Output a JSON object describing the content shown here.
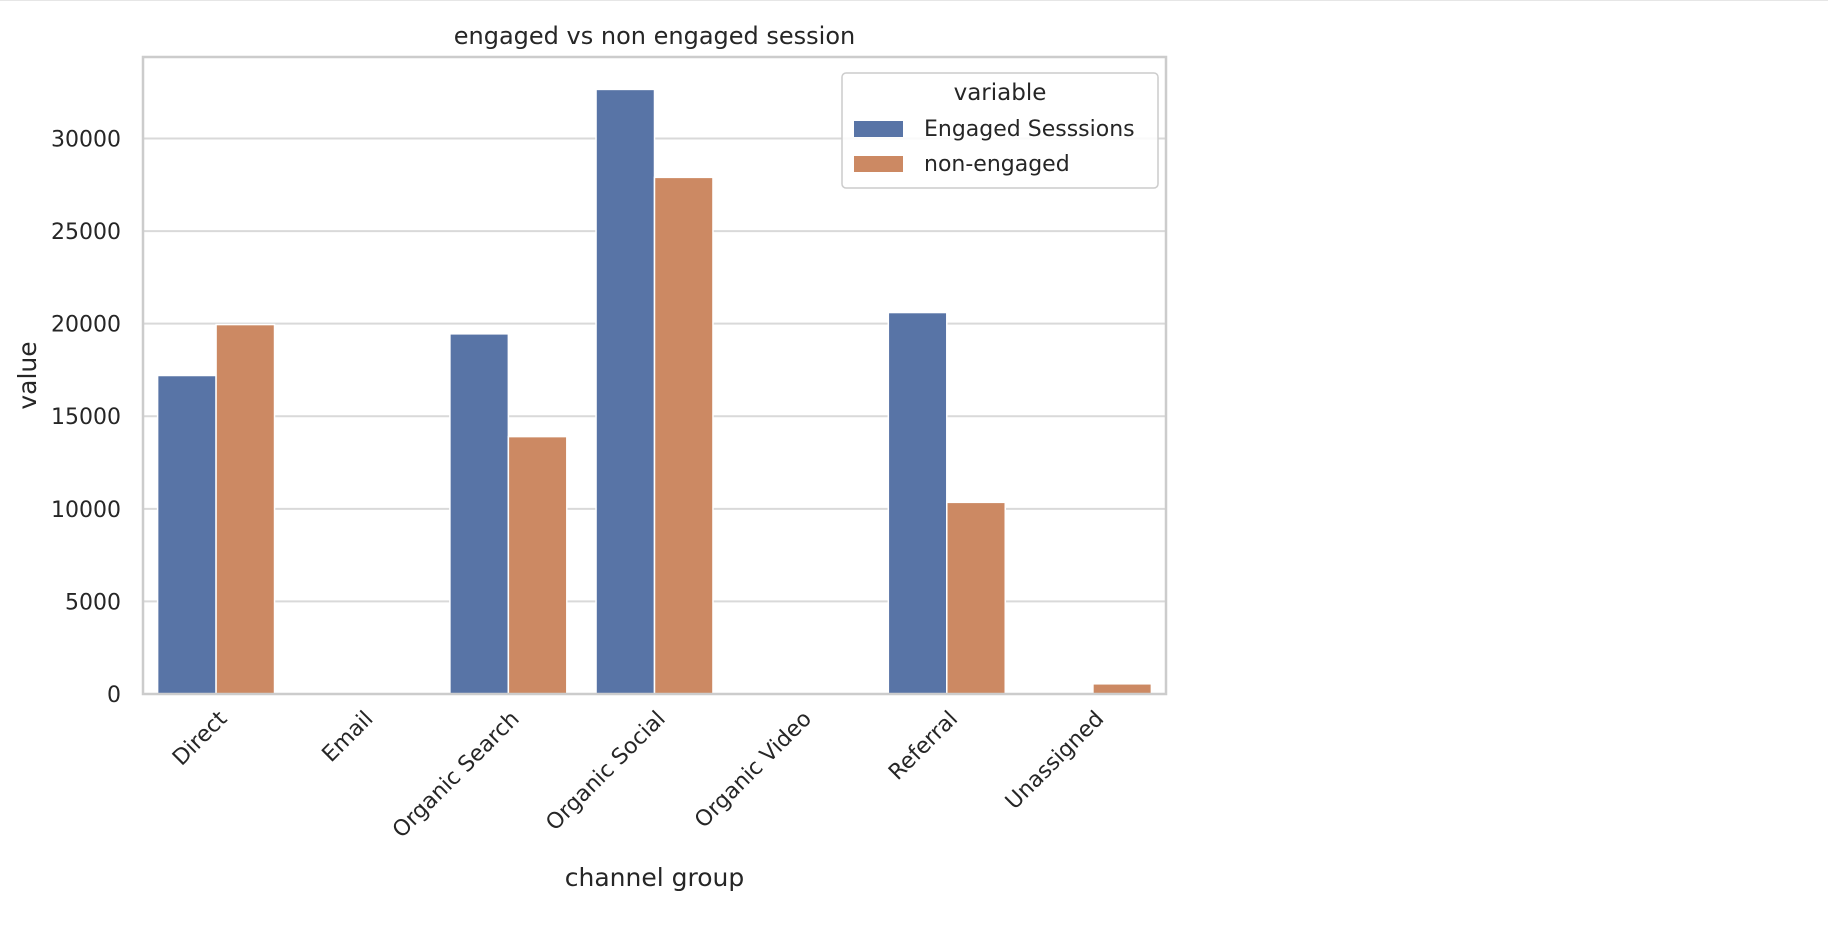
{
  "chart_data": {
    "type": "bar",
    "title": "engaged vs non engaged session",
    "xlabel": "channel group",
    "ylabel": "value",
    "categories": [
      "Direct",
      "Email",
      "Organic Search",
      "Organic Social",
      "Organic Video",
      "Referral",
      "Unassigned"
    ],
    "series": [
      {
        "name": "Engaged Sesssions",
        "color": "#5874a6",
        "values": [
          17200,
          0,
          19450,
          32650,
          0,
          20600,
          0
        ]
      },
      {
        "name": "non-engaged",
        "color": "#cc8963",
        "values": [
          19950,
          0,
          13900,
          27900,
          0,
          10350,
          550
        ]
      }
    ],
    "ylim": [
      0,
      34400
    ],
    "yticks": [
      0,
      5000,
      10000,
      15000,
      20000,
      25000,
      30000
    ],
    "legend": {
      "title": "variable",
      "position": "top-right"
    },
    "grid": true,
    "colors": {
      "grid": "#d9d9d9",
      "frame": "#cccccc",
      "background": "#ffffff"
    }
  }
}
